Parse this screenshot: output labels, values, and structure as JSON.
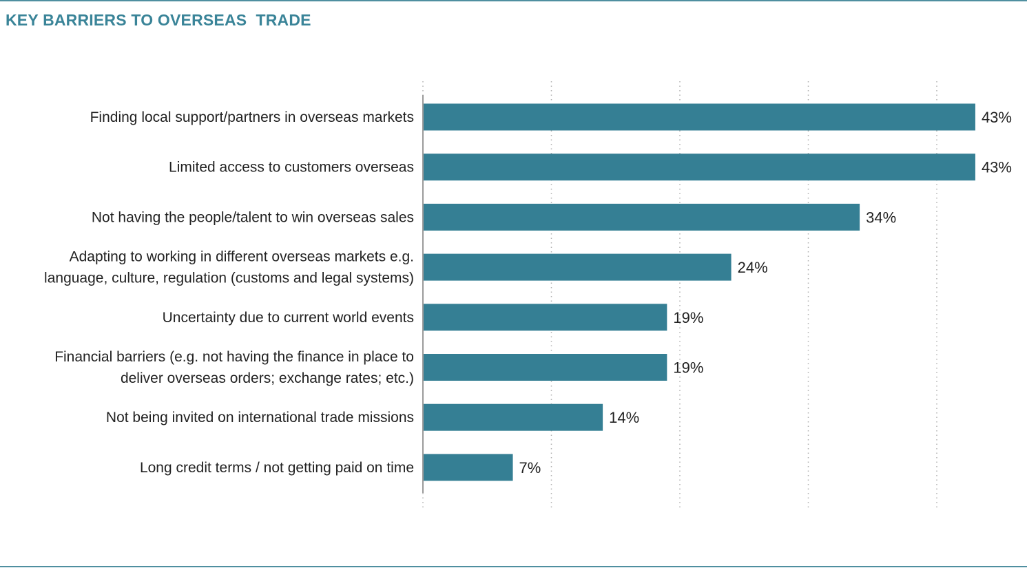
{
  "header": {
    "title": "KEY BARRIERS TO OVERSEAS  TRADE"
  },
  "colors": {
    "bar": "#357f94",
    "title": "#3a8498",
    "rule": "#4f8fa0",
    "grid": "#b0b0b0",
    "axis": "#9a9a9a"
  },
  "chart_data": {
    "type": "bar",
    "orientation": "horizontal",
    "title": "KEY BARRIERS TO OVERSEAS  TRADE",
    "categories": [
      [
        "Finding local support/partners in overseas markets"
      ],
      [
        "Limited access to customers overseas"
      ],
      [
        "Not having the people/talent to win overseas sales"
      ],
      [
        "Adapting to working in different overseas markets e.g.",
        "language, culture, regulation (customs and legal systems)"
      ],
      [
        "Uncertainty due to current world events"
      ],
      [
        "Financial barriers (e.g. not having the finance in place to",
        "deliver overseas orders; exchange rates; etc.)"
      ],
      [
        "Not being invited on international trade missions"
      ],
      [
        "Long credit terms / not getting paid on time"
      ]
    ],
    "values": [
      43,
      43,
      34,
      24,
      19,
      19,
      14,
      7
    ],
    "value_labels": [
      "43%",
      "43%",
      "34%",
      "24%",
      "19%",
      "19%",
      "14%",
      "7%"
    ],
    "unit": "%",
    "xlim": [
      0,
      50
    ],
    "grid": true,
    "grid_style": "dotted vertical",
    "legend": "none"
  }
}
